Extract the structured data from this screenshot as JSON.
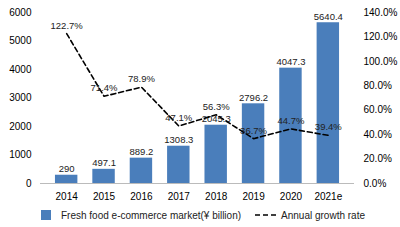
{
  "chart_data": {
    "type": "bar",
    "categories": [
      "2014",
      "2015",
      "2016",
      "2017",
      "2018",
      "2019",
      "2020",
      "2021e"
    ],
    "series": [
      {
        "name": "Fresh food e-commerce market(¥ billion)",
        "type": "bar",
        "color": "#4a7ebb",
        "values": [
          290,
          497.1,
          889.2,
          1308.3,
          2045.3,
          2796.2,
          4047.3,
          5640.4
        ]
      },
      {
        "name": "Annual growth rate",
        "type": "line",
        "axis": "y2",
        "color": "#000000",
        "line_style": "dashed",
        "values": [
          122.7,
          71.4,
          78.9,
          47.1,
          56.3,
          36.7,
          44.7,
          39.4
        ],
        "value_labels": [
          "122.7%",
          "71.4%",
          "78.9%",
          "47.1%",
          "56.3%",
          "36.7%",
          "44.7%",
          "39.4%"
        ]
      }
    ],
    "ylim": [
      0,
      6000
    ],
    "yticks": [
      0,
      1000,
      2000,
      3000,
      4000,
      5000,
      6000
    ],
    "y2lim": [
      0,
      140
    ],
    "y2ticks": [
      {
        "value": 0,
        "label": "0.0%"
      },
      {
        "value": 20,
        "label": "20.0%"
      },
      {
        "value": 40,
        "label": "40.0%"
      },
      {
        "value": 60,
        "label": "60.0%"
      },
      {
        "value": 80,
        "label": "80.0%"
      },
      {
        "value": 100,
        "label": "100.0%"
      },
      {
        "value": 120,
        "label": "120.0%"
      },
      {
        "value": 140,
        "label": "140.0%"
      }
    ],
    "data_labels": true,
    "legend": "bottom",
    "grid": false
  }
}
